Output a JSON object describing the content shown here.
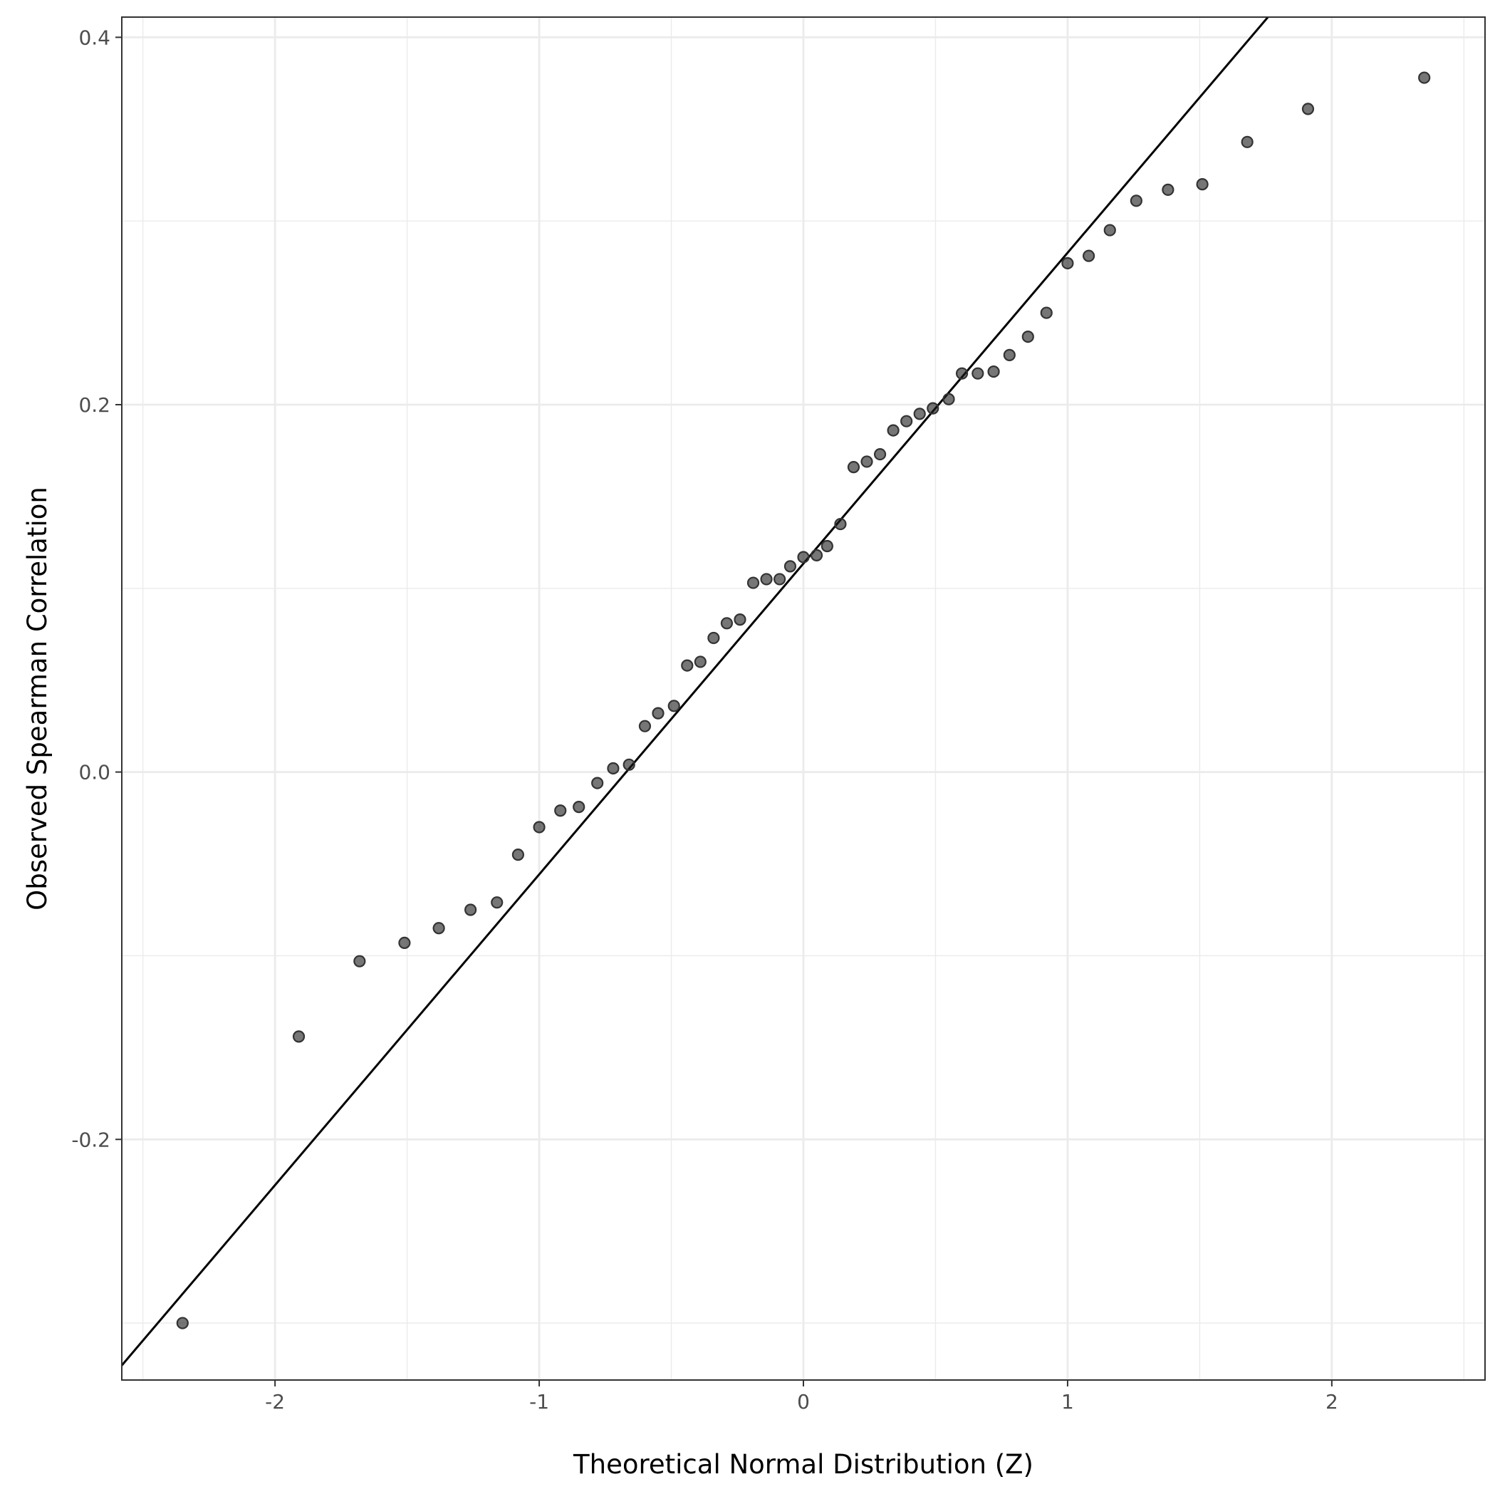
{
  "chart_data": {
    "type": "scatter",
    "title": "",
    "xlabel": "Theoretical Normal Distribution (Z)",
    "ylabel": "Observed Spearman Correlation",
    "xlim": [
      -2.58,
      2.58
    ],
    "ylim": [
      -0.331,
      0.411
    ],
    "x_ticks": [
      -2,
      -1,
      0,
      1,
      2
    ],
    "x_tick_labels": [
      "-2",
      "-1",
      "0",
      "1",
      "2"
    ],
    "y_ticks": [
      -0.2,
      0.0,
      0.2,
      0.4
    ],
    "y_tick_labels": [
      "-0.2",
      "0.0",
      "0.2",
      "0.4"
    ],
    "grid": true,
    "legend": "none",
    "point_color": "#1a1a1a",
    "line_color": "#000000",
    "reference_line": {
      "intercept": 0.1135,
      "slope": 0.1692
    },
    "points": [
      {
        "x": -2.35,
        "y": -0.3
      },
      {
        "x": -1.91,
        "y": -0.144
      },
      {
        "x": -1.68,
        "y": -0.103
      },
      {
        "x": -1.51,
        "y": -0.093
      },
      {
        "x": -1.38,
        "y": -0.085
      },
      {
        "x": -1.26,
        "y": -0.075
      },
      {
        "x": -1.16,
        "y": -0.071
      },
      {
        "x": -1.08,
        "y": -0.045
      },
      {
        "x": -1.0,
        "y": -0.03
      },
      {
        "x": -0.92,
        "y": -0.021
      },
      {
        "x": -0.85,
        "y": -0.019
      },
      {
        "x": -0.78,
        "y": -0.006
      },
      {
        "x": -0.72,
        "y": 0.002
      },
      {
        "x": -0.66,
        "y": 0.004
      },
      {
        "x": -0.6,
        "y": 0.025
      },
      {
        "x": -0.55,
        "y": 0.032
      },
      {
        "x": -0.49,
        "y": 0.036
      },
      {
        "x": -0.44,
        "y": 0.058
      },
      {
        "x": -0.39,
        "y": 0.06
      },
      {
        "x": -0.34,
        "y": 0.073
      },
      {
        "x": -0.29,
        "y": 0.081
      },
      {
        "x": -0.24,
        "y": 0.083
      },
      {
        "x": -0.19,
        "y": 0.103
      },
      {
        "x": -0.14,
        "y": 0.105
      },
      {
        "x": -0.09,
        "y": 0.105
      },
      {
        "x": -0.05,
        "y": 0.112
      },
      {
        "x": 0.0,
        "y": 0.117
      },
      {
        "x": 0.05,
        "y": 0.118
      },
      {
        "x": 0.09,
        "y": 0.123
      },
      {
        "x": 0.14,
        "y": 0.135
      },
      {
        "x": 0.19,
        "y": 0.166
      },
      {
        "x": 0.24,
        "y": 0.169
      },
      {
        "x": 0.29,
        "y": 0.173
      },
      {
        "x": 0.34,
        "y": 0.186
      },
      {
        "x": 0.39,
        "y": 0.191
      },
      {
        "x": 0.44,
        "y": 0.195
      },
      {
        "x": 0.49,
        "y": 0.198
      },
      {
        "x": 0.55,
        "y": 0.203
      },
      {
        "x": 0.6,
        "y": 0.217
      },
      {
        "x": 0.66,
        "y": 0.217
      },
      {
        "x": 0.72,
        "y": 0.218
      },
      {
        "x": 0.78,
        "y": 0.227
      },
      {
        "x": 0.85,
        "y": 0.237
      },
      {
        "x": 0.92,
        "y": 0.25
      },
      {
        "x": 1.0,
        "y": 0.277
      },
      {
        "x": 1.08,
        "y": 0.281
      },
      {
        "x": 1.16,
        "y": 0.295
      },
      {
        "x": 1.26,
        "y": 0.311
      },
      {
        "x": 1.38,
        "y": 0.317
      },
      {
        "x": 1.51,
        "y": 0.32
      },
      {
        "x": 1.68,
        "y": 0.343
      },
      {
        "x": 1.91,
        "y": 0.361
      },
      {
        "x": 2.35,
        "y": 0.378
      }
    ]
  }
}
